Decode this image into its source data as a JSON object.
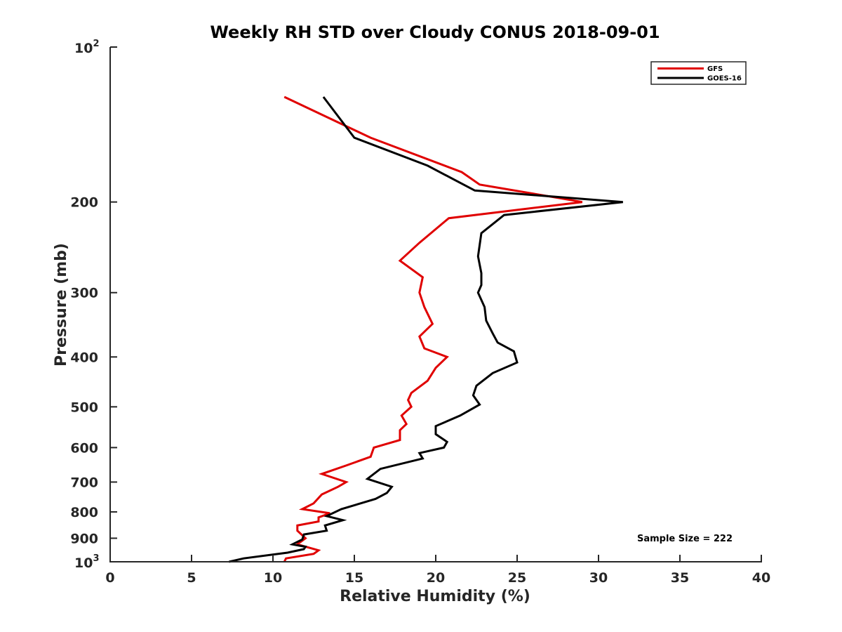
{
  "chart_data": {
    "type": "line",
    "title": "Weekly RH STD over Cloudy CONUS 2018-09-01",
    "xlabel": "Relative Humidity (%)",
    "ylabel": "Pressure (mb)",
    "xlim": [
      0,
      40
    ],
    "ylim": [
      100,
      1000
    ],
    "y_scale": "log",
    "y_reversed": true,
    "grid": false,
    "legend_position": "top-right",
    "x_ticks": [
      0,
      5,
      10,
      15,
      20,
      25,
      30,
      35,
      40
    ],
    "x_tick_labels": [
      "0",
      "5",
      "10",
      "15",
      "20",
      "25",
      "30",
      "35",
      "40"
    ],
    "y_ticks": [
      {
        "value": 100,
        "base": "10",
        "exp": "2"
      },
      {
        "value": 200,
        "label": "200"
      },
      {
        "value": 300,
        "label": "300"
      },
      {
        "value": 400,
        "label": "400"
      },
      {
        "value": 500,
        "label": "500"
      },
      {
        "value": 600,
        "label": "600"
      },
      {
        "value": 700,
        "label": "700"
      },
      {
        "value": 800,
        "label": "800"
      },
      {
        "value": 900,
        "label": "900"
      },
      {
        "value": 1000,
        "base": "10",
        "exp": "3"
      }
    ],
    "annotation": "Sample Size = 222",
    "series": [
      {
        "name": "GFS",
        "color": "#e00000",
        "points": [
          [
            10.7,
            125
          ],
          [
            16.0,
            150
          ],
          [
            21.6,
            175
          ],
          [
            22.7,
            185
          ],
          [
            29.0,
            200
          ],
          [
            20.8,
            215
          ],
          [
            19.0,
            240
          ],
          [
            17.8,
            260
          ],
          [
            19.2,
            280
          ],
          [
            19.0,
            300
          ],
          [
            19.3,
            320
          ],
          [
            19.8,
            345
          ],
          [
            19.0,
            365
          ],
          [
            19.3,
            385
          ],
          [
            20.7,
            400
          ],
          [
            20.0,
            420
          ],
          [
            19.5,
            445
          ],
          [
            18.5,
            470
          ],
          [
            18.3,
            485
          ],
          [
            18.5,
            500
          ],
          [
            17.9,
            520
          ],
          [
            18.2,
            540
          ],
          [
            17.8,
            555
          ],
          [
            17.8,
            580
          ],
          [
            16.2,
            600
          ],
          [
            16.0,
            625
          ],
          [
            14.5,
            650
          ],
          [
            13.0,
            675
          ],
          [
            14.5,
            700
          ],
          [
            14.0,
            715
          ],
          [
            13.0,
            740
          ],
          [
            12.5,
            770
          ],
          [
            11.8,
            790
          ],
          [
            13.5,
            805
          ],
          [
            12.8,
            820
          ],
          [
            12.8,
            835
          ],
          [
            11.5,
            850
          ],
          [
            11.5,
            870
          ],
          [
            12.0,
            900
          ],
          [
            11.5,
            925
          ],
          [
            12.8,
            950
          ],
          [
            12.5,
            965
          ],
          [
            10.8,
            985
          ],
          [
            10.7,
            1000
          ]
        ]
      },
      {
        "name": "GOES-16",
        "color": "#000000",
        "points": [
          [
            13.1,
            125
          ],
          [
            15.0,
            150
          ],
          [
            19.5,
            170
          ],
          [
            22.4,
            190
          ],
          [
            31.5,
            200
          ],
          [
            24.2,
            212
          ],
          [
            22.8,
            230
          ],
          [
            22.6,
            255
          ],
          [
            22.8,
            275
          ],
          [
            22.8,
            290
          ],
          [
            22.6,
            300
          ],
          [
            23.0,
            320
          ],
          [
            23.1,
            340
          ],
          [
            23.5,
            360
          ],
          [
            23.8,
            375
          ],
          [
            24.8,
            390
          ],
          [
            25.0,
            410
          ],
          [
            23.5,
            430
          ],
          [
            22.5,
            455
          ],
          [
            22.3,
            475
          ],
          [
            22.7,
            495
          ],
          [
            21.5,
            520
          ],
          [
            20.0,
            545
          ],
          [
            20.0,
            565
          ],
          [
            20.7,
            585
          ],
          [
            20.5,
            600
          ],
          [
            19.0,
            615
          ],
          [
            19.2,
            630
          ],
          [
            16.6,
            660
          ],
          [
            15.8,
            690
          ],
          [
            17.3,
            715
          ],
          [
            17.0,
            735
          ],
          [
            16.3,
            755
          ],
          [
            14.2,
            790
          ],
          [
            13.3,
            815
          ],
          [
            14.3,
            830
          ],
          [
            13.2,
            850
          ],
          [
            13.3,
            870
          ],
          [
            11.9,
            885
          ],
          [
            11.8,
            905
          ],
          [
            11.2,
            925
          ],
          [
            12.0,
            935
          ],
          [
            11.9,
            945
          ],
          [
            10.9,
            960
          ],
          [
            8.2,
            985
          ],
          [
            7.3,
            1000
          ]
        ]
      }
    ]
  }
}
